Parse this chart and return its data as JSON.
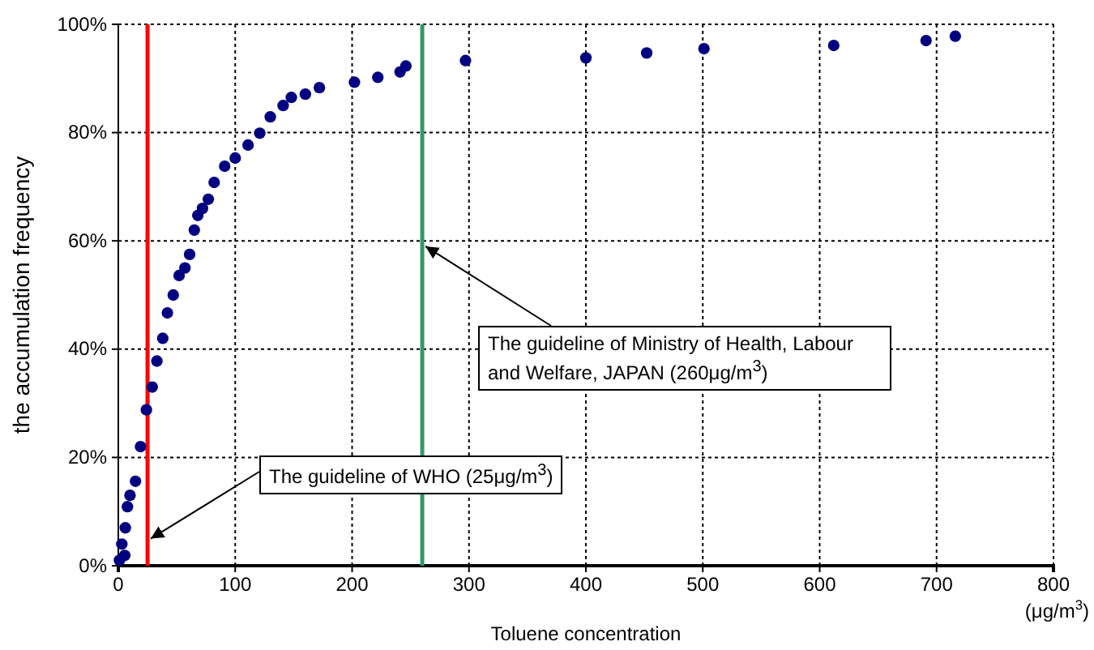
{
  "chart_data": {
    "type": "scatter",
    "xlabel": "Toluene concentration",
    "ylabel": "the accumulation frequency",
    "xlim": [
      0,
      800
    ],
    "xticks": [
      0,
      100,
      200,
      300,
      400,
      500,
      600,
      700,
      800
    ],
    "ylim": [
      0,
      100
    ],
    "yticks": [
      {
        "value": 0,
        "label": "0%"
      },
      {
        "value": 20,
        "label": "20%"
      },
      {
        "value": 40,
        "label": "40%"
      },
      {
        "value": 60,
        "label": "60%"
      },
      {
        "value": 80,
        "label": "80%"
      },
      {
        "value": 100,
        "label": "100%"
      }
    ],
    "grid": true,
    "marker": "circle",
    "series": [
      {
        "color": "#000080",
        "x": [
          1,
          3,
          5.5,
          6,
          7.8,
          10,
          14.7,
          19,
          24,
          29,
          33,
          38,
          42,
          47,
          52,
          57,
          61,
          65,
          68,
          72,
          77,
          82,
          91,
          100,
          111,
          121,
          130,
          141,
          148,
          160,
          172,
          202,
          222,
          241,
          246,
          297,
          400,
          452,
          501,
          612,
          691,
          716
        ],
        "values": [
          1,
          4,
          1.9,
          7,
          10.9,
          13,
          15.6,
          22,
          28.8,
          33,
          37.8,
          42,
          46.7,
          50,
          53.6,
          55,
          57.5,
          62,
          64.7,
          66,
          67.7,
          70.8,
          73.8,
          75.3,
          77.7,
          79.9,
          82.9,
          85,
          86.5,
          87.1,
          88.3,
          89.3,
          90.2,
          91.2,
          92.3,
          93.3,
          93.8,
          94.7,
          95.5,
          96.1,
          97,
          97.8
        ]
      }
    ],
    "ref_lines": [
      {
        "axis": "x",
        "value": 25,
        "label": "The guideline of WHO (25μg/m$^{3}$)",
        "color": "#ff0000"
      },
      {
        "axis": "x",
        "value": 260,
        "label": "The guideline of Ministry of Health, Labour and Welfare, JAPAN (260μg/m$^{3}$)",
        "color": "#339966"
      }
    ],
    "annotations": [
      "(μg/m$^{3}$)"
    ]
  }
}
